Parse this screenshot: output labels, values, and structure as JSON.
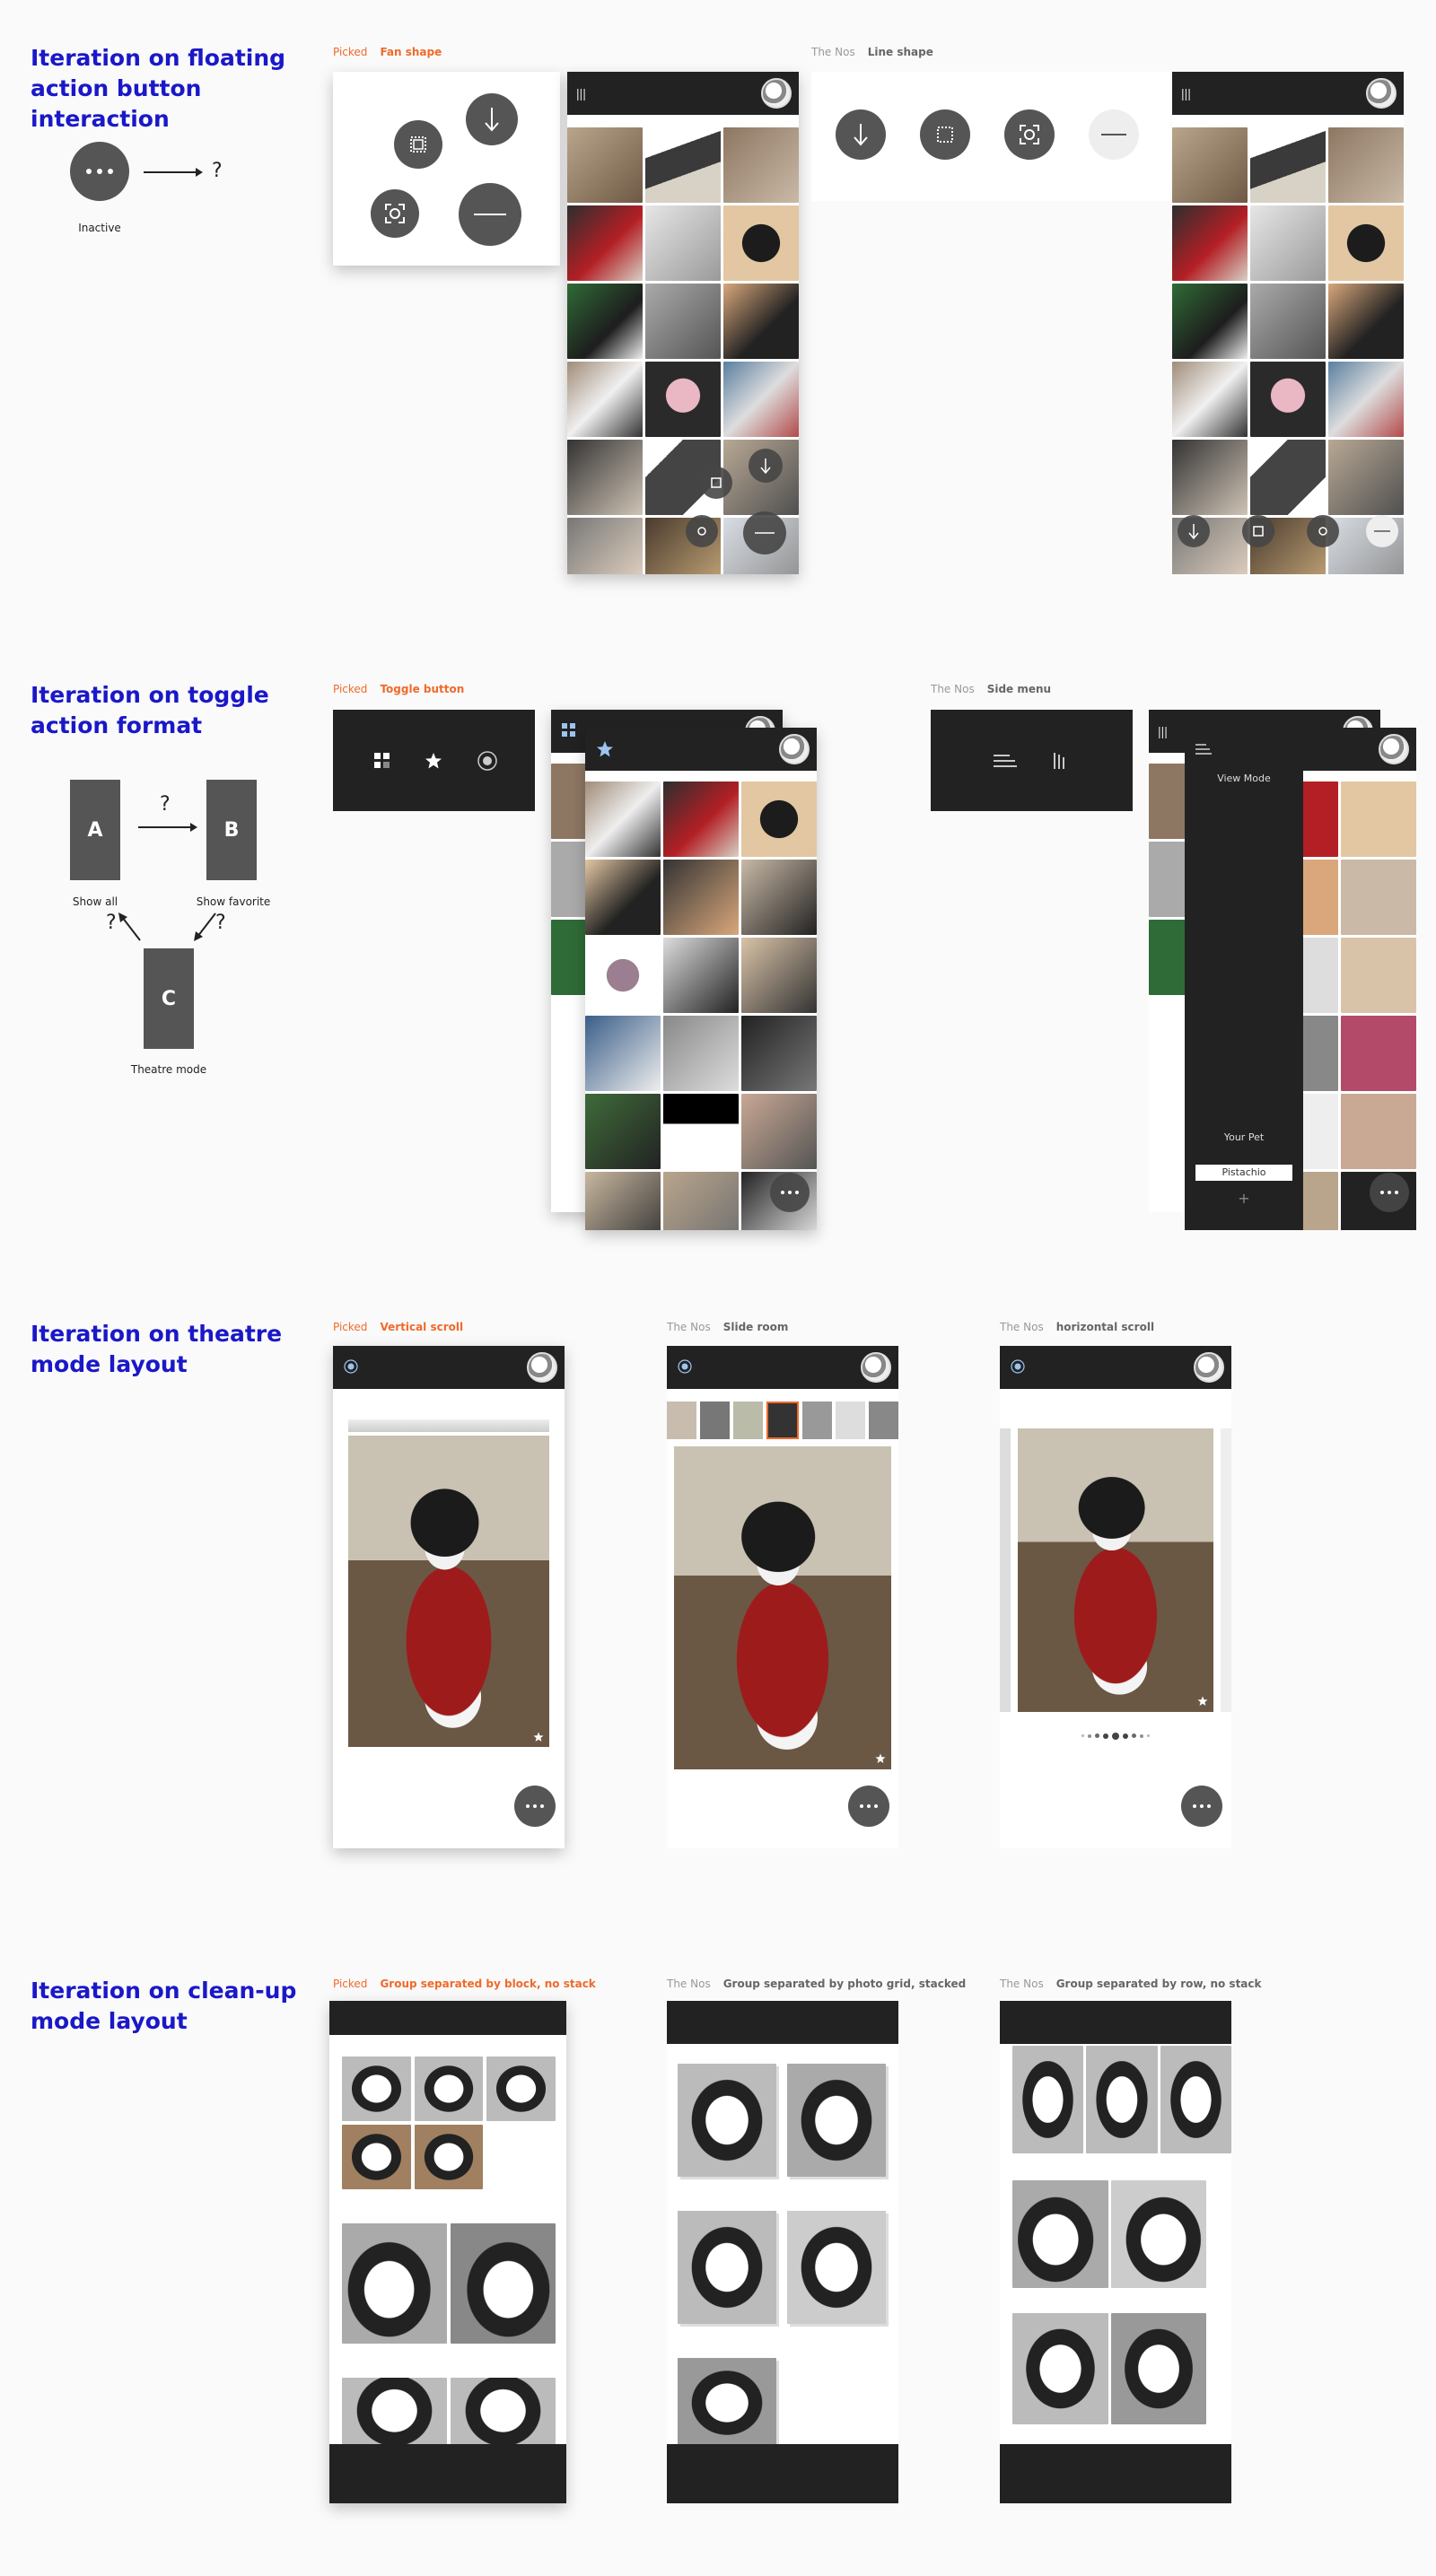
{
  "sections": {
    "fab": {
      "title": "Iteration on floating action button interaction",
      "inactive_label": "Inactive",
      "question": "?",
      "picked": {
        "tag": "Picked",
        "name": "Fan shape"
      },
      "alt": {
        "tag": "The Nos",
        "name": "Line shape"
      }
    },
    "toggle": {
      "title": "Iteration on toggle action format",
      "box_a": "A",
      "box_b": "B",
      "box_c": "C",
      "label_a": "Show all",
      "label_b": "Show favorite",
      "label_c": "Theatre mode",
      "question": "?",
      "picked": {
        "tag": "Picked",
        "name": "Toggle button"
      },
      "alt": {
        "tag": "The Nos",
        "name": "Side menu"
      },
      "side_menu": {
        "view_mode": "View Mode",
        "your_pet": "Your Pet",
        "pet_name": "Pistachio",
        "add": "+"
      }
    },
    "theatre": {
      "title": "Iteration on theatre mode layout",
      "picked": {
        "tag": "Picked",
        "name": "Vertical scroll"
      },
      "alt1": {
        "tag": "The Nos",
        "name": "Slide room"
      },
      "alt2": {
        "tag": "The Nos",
        "name": "horizontal scroll"
      }
    },
    "cleanup": {
      "title": "Iteration on clean-up mode layout",
      "picked": {
        "tag": "Picked",
        "name": "Group separated by block, no stack"
      },
      "alt1": {
        "tag": "The Nos",
        "name": "Group separated by photo grid, stacked"
      },
      "alt2": {
        "tag": "The Nos",
        "name": "Group separated by row, no stack"
      }
    }
  },
  "icons": {
    "more": "more-dots-icon",
    "download": "download-arrow-icon",
    "crop": "crop-frame-icon",
    "camera": "screenshot-icon",
    "minus": "collapse-line-icon",
    "star": "star-icon",
    "grid": "grid-icon"
  },
  "colors": {
    "heading": "#1a18c8",
    "picked": "#f06a2a",
    "dark_bar": "#222222",
    "fab": "#555555"
  }
}
